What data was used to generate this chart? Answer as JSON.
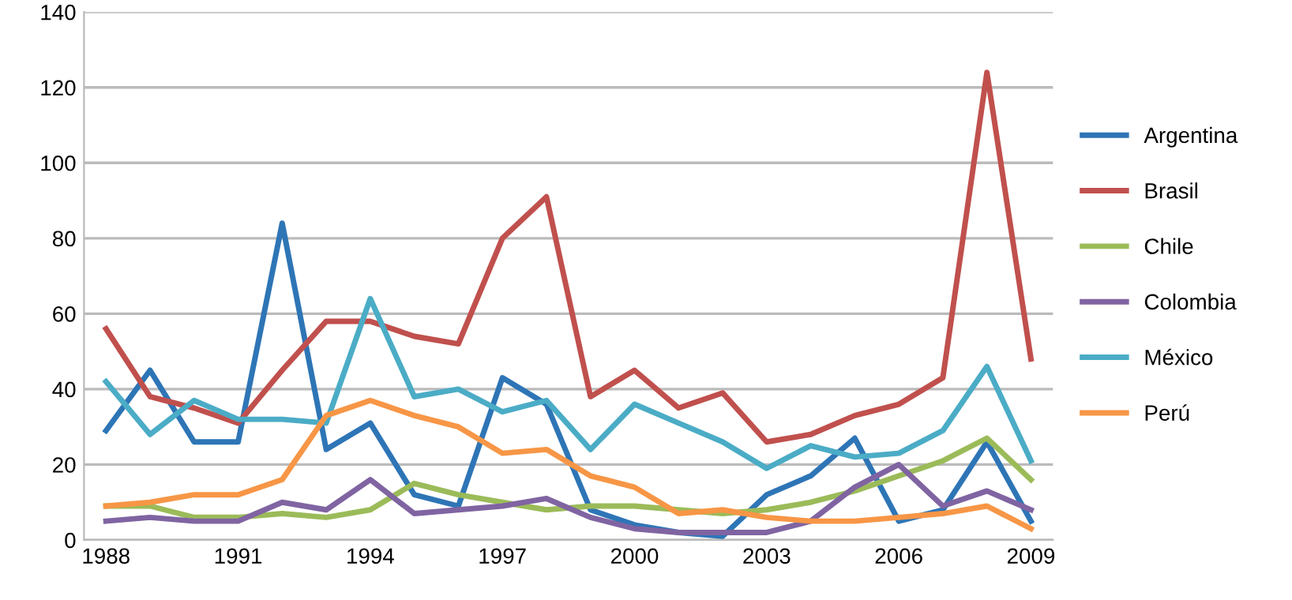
{
  "chart_data": {
    "type": "line",
    "categories": [
      "1988",
      null,
      null,
      "1991",
      null,
      null,
      "1994",
      null,
      null,
      "1997",
      null,
      null,
      "2000",
      null,
      null,
      "2003",
      null,
      null,
      "2006",
      null,
      null,
      "2009"
    ],
    "series": [
      {
        "name": "Argentina",
        "color": "#2e75b6",
        "values": [
          29,
          45,
          26,
          26,
          84,
          24,
          31,
          12,
          9,
          43,
          36,
          8,
          4,
          2,
          1,
          12,
          17,
          27,
          5,
          8,
          26,
          5
        ]
      },
      {
        "name": "Brasil",
        "color": "#c0504d",
        "values": [
          56,
          38,
          35,
          31,
          45,
          58,
          58,
          54,
          52,
          80,
          91,
          38,
          45,
          35,
          39,
          26,
          28,
          33,
          36,
          43,
          124,
          48
        ]
      },
      {
        "name": "Chile",
        "color": "#9bbb59",
        "values": [
          9,
          9,
          6,
          6,
          7,
          6,
          8,
          15,
          12,
          10,
          8,
          9,
          9,
          8,
          7,
          8,
          10,
          13,
          17,
          21,
          27,
          16
        ]
      },
      {
        "name": "Colombia",
        "color": "#8064a2",
        "values": [
          5,
          6,
          5,
          5,
          10,
          8,
          16,
          7,
          8,
          9,
          11,
          6,
          3,
          2,
          2,
          2,
          5,
          14,
          20,
          9,
          13,
          8
        ]
      },
      {
        "name": "México",
        "color": "#4bacc6",
        "values": [
          42,
          28,
          37,
          32,
          32,
          31,
          64,
          38,
          40,
          34,
          37,
          24,
          36,
          31,
          26,
          19,
          25,
          22,
          23,
          29,
          46,
          21
        ]
      },
      {
        "name": "Perú",
        "color": "#f79646",
        "values": [
          9,
          10,
          12,
          12,
          16,
          33,
          37,
          33,
          30,
          23,
          24,
          17,
          14,
          7,
          8,
          6,
          5,
          5,
          6,
          7,
          9,
          3
        ]
      }
    ],
    "ylim": [
      0,
      140
    ],
    "yticks": [
      0,
      20,
      40,
      60,
      80,
      100,
      120,
      140
    ],
    "grid": "y",
    "legend": "right",
    "marker": "none",
    "line_style": "solid"
  }
}
